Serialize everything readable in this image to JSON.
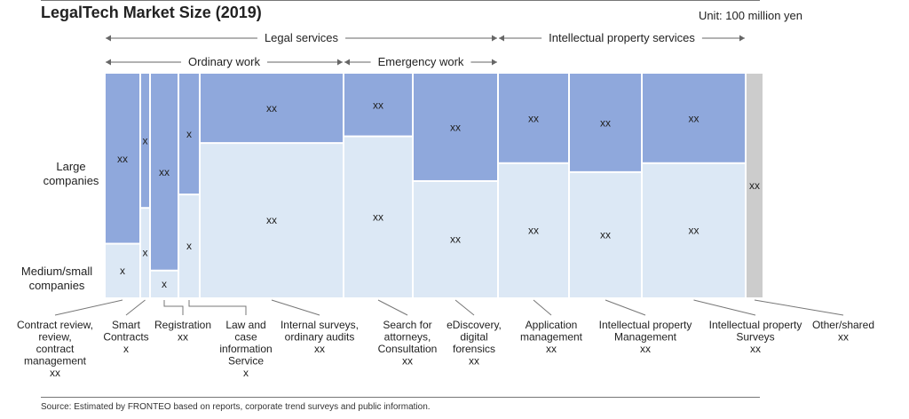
{
  "title": "LegalTech Market Size (2019)",
  "unit": "Unit: 100 million yen",
  "source": "Source: Estimated by FRONTEO based on reports, corporate trend surveys and public information.",
  "colors": {
    "large": "#8fa8dc",
    "medium": "#dce8f5",
    "other": "#cccccc",
    "arrow": "#666666"
  },
  "groups_level1": [
    {
      "label": "Legal services",
      "from": 0,
      "to": 6
    },
    {
      "label": "Intellectual property services",
      "from": 7,
      "to": 9
    }
  ],
  "groups_level2": [
    {
      "label": "Ordinary work",
      "from": 0,
      "to": 4
    },
    {
      "label": "Emergency work",
      "from": 5,
      "to": 6
    }
  ],
  "chart_data": {
    "type": "mekko",
    "y_categories": [
      "Large companies",
      "Medium/small companies"
    ],
    "categories": [
      {
        "name": "Contract review, review, contract management",
        "label_lines": [
          "Contract review,",
          "review,",
          "contract",
          "management",
          "xx"
        ],
        "width": 38,
        "large": 0.76,
        "large_label": "xx",
        "medium_label": "x"
      },
      {
        "name": "Smart Contracts",
        "label_lines": [
          "Smart",
          "Contracts",
          "x"
        ],
        "width": 9,
        "large": 0.6,
        "large_label": "x",
        "medium_label": "x"
      },
      {
        "name": "Registration",
        "label_lines": [
          "Registration",
          "xx"
        ],
        "width": 30,
        "large": 0.88,
        "large_label": "xx",
        "medium_label": "x"
      },
      {
        "name": "Law and case information Service",
        "label_lines": [
          "Law and",
          "case",
          "information",
          "Service",
          "x"
        ],
        "width": 22,
        "large": 0.54,
        "large_label": "x",
        "medium_label": "x"
      },
      {
        "name": "Internal surveys, ordinary audits",
        "label_lines": [
          "Internal surveys,",
          "ordinary audits",
          "xx"
        ],
        "width": 160,
        "large": 0.31,
        "large_label": "xx",
        "medium_label": "xx"
      },
      {
        "name": "Search for attorneys, Consultation",
        "label_lines": [
          "Search for",
          "attorneys,",
          "Consultation",
          "xx"
        ],
        "width": 76,
        "large": 0.28,
        "large_label": "xx",
        "medium_label": "xx"
      },
      {
        "name": "eDiscovery, digital forensics",
        "label_lines": [
          "eDiscovery,",
          "digital",
          "forensics",
          "xx"
        ],
        "width": 94,
        "large": 0.48,
        "large_label": "xx",
        "medium_label": "xx"
      },
      {
        "name": "Application management",
        "label_lines": [
          "Application",
          "management",
          "xx"
        ],
        "width": 78,
        "large": 0.4,
        "large_label": "xx",
        "medium_label": "xx"
      },
      {
        "name": "Intellectual property Management",
        "label_lines": [
          "Intellectual property",
          "Management",
          "xx"
        ],
        "width": 80,
        "large": 0.44,
        "large_label": "xx",
        "medium_label": "xx"
      },
      {
        "name": "Intellectual property Surveys",
        "label_lines": [
          "Intellectual property",
          "Surveys",
          "xx"
        ],
        "width": 115,
        "large": 0.4,
        "large_label": "xx",
        "medium_label": "xx"
      },
      {
        "name": "Other/shared",
        "label_lines": [
          "Other/shared",
          "xx"
        ],
        "width": 18,
        "large": 1.0,
        "large_label": "xx",
        "medium_label": "",
        "single": true
      }
    ]
  }
}
